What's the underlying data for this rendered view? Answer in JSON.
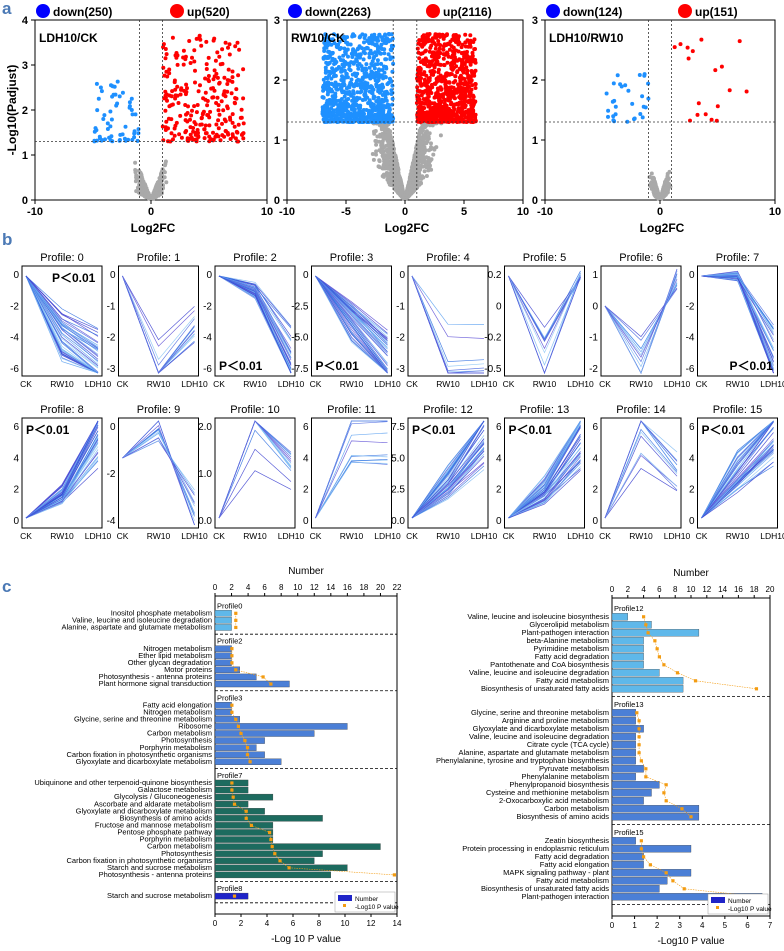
{
  "panel_labels": {
    "a": "a",
    "b": "b",
    "c": "c"
  },
  "colors": {
    "panel_label": "#4b79b5",
    "down": "#1e90ff",
    "up": "#ff0000",
    "ns": "#a9a9a9",
    "profile_line": "#4d79e8",
    "bar_light": "#5fb8ea",
    "bar_dark": "#1d6b5f",
    "bar_blue": "#4b7fd6",
    "bar_navy": "#1f24c8",
    "pvalue": "#f39c12"
  },
  "volcano": {
    "ylabel": "-Log10(Padjust)",
    "xlabel": "Log2FC",
    "panels": [
      {
        "title": "LDH10/CK",
        "down": "down(250)",
        "up": "up(520)",
        "xlim": [
          -10,
          10
        ],
        "ylim": [
          0,
          4
        ],
        "xticks": [
          "-10",
          "0",
          "10"
        ],
        "yticks": [
          "0",
          "1",
          "2",
          "3",
          "4"
        ]
      },
      {
        "title": "RW10/CK",
        "down": "down(2263)",
        "up": "up(2116)",
        "xlim": [
          -10,
          10
        ],
        "ylim": [
          0,
          3
        ],
        "xticks": [
          "-10",
          "-5",
          "0",
          "5",
          "10"
        ],
        "yticks": [
          "0",
          "1",
          "2",
          "3"
        ]
      },
      {
        "title": "LDH10/RW10",
        "down": "down(124)",
        "up": "up(151)",
        "xlim": [
          -10,
          10
        ],
        "ylim": [
          0,
          3
        ],
        "xticks": [
          "-10",
          "0",
          "10"
        ],
        "yticks": [
          "0",
          "1",
          "2",
          "3"
        ]
      }
    ]
  },
  "profiles": {
    "xticks": [
      "CK",
      "RW10",
      "LDH10"
    ],
    "items": [
      {
        "title": "Profile: 0",
        "p": "P＜0.01",
        "yticks": [
          "0",
          "-2",
          "-4",
          "-6"
        ],
        "pattern": [
          0,
          -4,
          -6
        ]
      },
      {
        "title": "Profile: 1",
        "p": "",
        "yticks": [
          "0",
          "-1",
          "-2",
          "-3"
        ],
        "pattern": [
          0,
          -2,
          -1
        ]
      },
      {
        "title": "Profile: 2",
        "p": "P＜0.01",
        "yticks": [
          "0",
          "-2",
          "-4",
          "-6"
        ],
        "pattern": [
          0,
          -1,
          -6
        ]
      },
      {
        "title": "Profile: 3",
        "p": "P＜0.01",
        "yticks": [
          "0",
          "-2.5",
          "-5.0",
          "-7.5"
        ],
        "pattern": [
          0,
          -2,
          -4
        ]
      },
      {
        "title": "Profile: 4",
        "p": "",
        "yticks": [
          "0",
          "-1",
          "-2",
          "-3"
        ],
        "pattern": [
          0,
          -2,
          -2
        ]
      },
      {
        "title": "Profile: 5",
        "p": "",
        "yticks": [
          "0.2",
          "0",
          "-0.2",
          "-0.5"
        ],
        "pattern": [
          0,
          -1,
          0
        ]
      },
      {
        "title": "Profile: 6",
        "p": "",
        "yticks": [
          "1",
          "0",
          "-1",
          "-2"
        ],
        "pattern": [
          0,
          -2,
          1
        ]
      },
      {
        "title": "Profile: 7",
        "p": "P＜0.01",
        "yticks": [
          "0",
          "-2",
          "-4",
          "-6"
        ],
        "pattern": [
          0,
          0,
          -4
        ]
      },
      {
        "title": "Profile: 8",
        "p": "P＜0.01",
        "yticks": [
          "6",
          "4",
          "2",
          "0"
        ],
        "pattern": [
          0,
          1,
          4
        ]
      },
      {
        "title": "Profile: 9",
        "p": "",
        "yticks": [
          "0",
          "-2",
          "-4"
        ],
        "pattern": [
          0,
          1,
          -2
        ]
      },
      {
        "title": "Profile: 10",
        "p": "",
        "yticks": [
          "2.0",
          "1.0",
          "0.0"
        ],
        "pattern": [
          0,
          2,
          1
        ]
      },
      {
        "title": "Profile: 11",
        "p": "",
        "yticks": [
          "6",
          "4",
          "2",
          "0"
        ],
        "pattern": [
          0,
          3,
          3
        ]
      },
      {
        "title": "Profile: 12",
        "p": "P＜0.01",
        "yticks": [
          "7.5",
          "5.0",
          "2.5",
          "0.0"
        ],
        "pattern": [
          0,
          2,
          5
        ]
      },
      {
        "title": "Profile: 13",
        "p": "P＜0.01",
        "yticks": [
          "6",
          "4",
          "2",
          "0"
        ],
        "pattern": [
          0,
          1,
          3
        ]
      },
      {
        "title": "Profile: 14",
        "p": "",
        "yticks": [
          "6",
          "4",
          "2",
          "0"
        ],
        "pattern": [
          0,
          4,
          2
        ]
      },
      {
        "title": "Profile: 15",
        "p": "P＜0.01",
        "yticks": [
          "6",
          "4",
          "2",
          "0"
        ],
        "pattern": [
          0,
          2,
          4
        ]
      }
    ]
  },
  "chart_data": [
    {
      "type": "bar",
      "title": "",
      "xlabel_top": "Number",
      "xlabel_bottom": "-Log 10 P value",
      "top_ticks": [
        "0",
        "2",
        "4",
        "6",
        "8",
        "10",
        "12",
        "14",
        "16",
        "18",
        "20",
        "22"
      ],
      "bottom_ticks": [
        "0",
        "2",
        "4",
        "6",
        "8",
        "10",
        "12",
        "14"
      ],
      "legend": {
        "number": "Number",
        "pvalue": "-Log10 P value"
      },
      "groups": [
        {
          "name": "Profile0",
          "color": "bar_light",
          "terms": [
            {
              "label": "Inositol phosphate metabolism",
              "number": 2,
              "p": 1.6
            },
            {
              "label": "Valine, leucine and isoleucine degradation",
              "number": 2,
              "p": 1.6
            },
            {
              "label": "Alanine, aspartate and glutamate metabolism",
              "number": 2,
              "p": 1.6
            }
          ]
        },
        {
          "name": "Profile2",
          "color": "bar_blue",
          "terms": [
            {
              "label": "Nitrogen metabolism",
              "number": 2,
              "p": 1.3
            },
            {
              "label": "Ether lipid metabolism",
              "number": 2,
              "p": 1.3
            },
            {
              "label": "Other glycan degradation",
              "number": 2,
              "p": 1.3
            },
            {
              "label": "Motor proteins",
              "number": 3,
              "p": 1.6
            },
            {
              "label": "Photosynthesis - antenna proteins",
              "number": 5,
              "p": 3.7
            },
            {
              "label": "Plant hormone signal transduction",
              "number": 9,
              "p": 4.3
            }
          ]
        },
        {
          "name": "Profile3",
          "color": "bar_blue",
          "terms": [
            {
              "label": "Fatty acid elongation",
              "number": 2,
              "p": 1.3
            },
            {
              "label": "Nitrogen metabolism",
              "number": 2,
              "p": 1.3
            },
            {
              "label": "Glycine, serine and threonine metabolism",
              "number": 3,
              "p": 1.6
            },
            {
              "label": "Ribosome",
              "number": 16,
              "p": 1.8
            },
            {
              "label": "Carbon metabolism",
              "number": 12,
              "p": 2.0
            },
            {
              "label": "Photosynthesis",
              "number": 6,
              "p": 2.3
            },
            {
              "label": "Porphyrin metabolism",
              "number": 5,
              "p": 2.5
            },
            {
              "label": "Carbon fixation in photosynthetic organisms",
              "number": 6,
              "p": 2.5
            },
            {
              "label": "Glyoxylate and dicarboxylate metabolism",
              "number": 8,
              "p": 2.7
            }
          ]
        },
        {
          "name": "Profile7",
          "color": "bar_dark",
          "terms": [
            {
              "label": "Ubiquinone and other terpenoid-quinone biosynthesis",
              "number": 4,
              "p": 1.3
            },
            {
              "label": "Galactose metabolism",
              "number": 4,
              "p": 1.3
            },
            {
              "label": "Glycolysis / Gluconeogenesis",
              "number": 7,
              "p": 1.4
            },
            {
              "label": "Ascorbate and aldarate metabolism",
              "number": 4,
              "p": 1.5
            },
            {
              "label": "Glyoxylate and dicarboxylate metabolism",
              "number": 6,
              "p": 2.4
            },
            {
              "label": "Biosynthesis of amino acids",
              "number": 13,
              "p": 2.4
            },
            {
              "label": "Fructose and mannose metabolism",
              "number": 7,
              "p": 2.8
            },
            {
              "label": "Pentose phosphate pathway",
              "number": 7,
              "p": 4.2
            },
            {
              "label": "Porphyrin metabolism",
              "number": 7,
              "p": 4.3
            },
            {
              "label": "Carbon metabolism",
              "number": 20,
              "p": 4.4
            },
            {
              "label": "Photosynthesis",
              "number": 13,
              "p": 4.6
            },
            {
              "label": "Carbon fixation in photosynthetic organisms",
              "number": 12,
              "p": 5.0
            },
            {
              "label": "Starch and sucrose metabolism",
              "number": 16,
              "p": 5.7
            },
            {
              "label": "Photosynthesis - antenna proteins",
              "number": 14,
              "p": 13.8
            }
          ]
        },
        {
          "name": "Profile8",
          "color": "bar_navy",
          "terms": [
            {
              "label": "Starch and sucrose metabolism",
              "number": 4,
              "p": 1.5
            }
          ]
        }
      ]
    },
    {
      "type": "bar",
      "title": "",
      "xlabel_top": "Number",
      "xlabel_bottom": "-Log10 P value",
      "top_ticks": [
        "0",
        "2",
        "4",
        "6",
        "8",
        "10",
        "12",
        "14",
        "16",
        "18",
        "20"
      ],
      "bottom_ticks": [
        "0",
        "1",
        "2",
        "3",
        "4",
        "5",
        "6",
        "7"
      ],
      "legend": {
        "number": "Number",
        "pvalue": "-Log10 P value"
      },
      "groups": [
        {
          "name": "Profile12",
          "color": "bar_light",
          "terms": [
            {
              "label": "Valine, leucine and isoleucine biosynthesis",
              "number": 2,
              "p": 1.4
            },
            {
              "label": "Glycerolipid metabolism",
              "number": 5,
              "p": 1.5
            },
            {
              "label": "Plant-pathogen interaction",
              "number": 11,
              "p": 1.6
            },
            {
              "label": "beta-Alanine metabolism",
              "number": 4,
              "p": 1.9
            },
            {
              "label": "Pyrimidine metabolism",
              "number": 4,
              "p": 2.0
            },
            {
              "label": "Fatty acid degradation",
              "number": 4,
              "p": 2.1
            },
            {
              "label": "Pantothenate and CoA biosynthesis",
              "number": 4,
              "p": 2.3
            },
            {
              "label": "Valine, leucine and isoleucine degradation",
              "number": 6,
              "p": 2.9
            },
            {
              "label": "Fatty acid metabolism",
              "number": 9,
              "p": 3.7
            },
            {
              "label": "Biosynthesis of unsaturated fatty acids",
              "number": 9,
              "p": 6.4
            }
          ]
        },
        {
          "name": "Profile13",
          "color": "bar_blue",
          "terms": [
            {
              "label": "Glycine, serine and threonine metabolism",
              "number": 3,
              "p": 1.1
            },
            {
              "label": "Arginine and proline metabolism",
              "number": 3,
              "p": 1.2
            },
            {
              "label": "Glyoxylate and dicarboxylate metabolism",
              "number": 4,
              "p": 1.2
            },
            {
              "label": "Valine, leucine and isoleucine degradation",
              "number": 3,
              "p": 1.2
            },
            {
              "label": "Citrate cycle (TCA cycle)",
              "number": 3,
              "p": 1.2
            },
            {
              "label": "Alanine, aspartate and glutamate metabolism",
              "number": 3,
              "p": 1.2
            },
            {
              "label": "Phenylalanine, tyrosine and tryptophan biosynthesis",
              "number": 3,
              "p": 1.3
            },
            {
              "label": "Pyruvate metabolism",
              "number": 4,
              "p": 1.5
            },
            {
              "label": "Phenylalanine metabolism",
              "number": 3,
              "p": 1.5
            },
            {
              "label": "Phenylpropanoid biosynthesis",
              "number": 6,
              "p": 2.4
            },
            {
              "label": "Cysteine and methionine metabolism",
              "number": 5,
              "p": 2.3
            },
            {
              "label": "2-Oxocarboxylic acid metabolism",
              "number": 4,
              "p": 2.4
            },
            {
              "label": "Carbon metabolism",
              "number": 11,
              "p": 3.1
            },
            {
              "label": "Biosynthesis of amino acids",
              "number": 11,
              "p": 3.5
            }
          ]
        },
        {
          "name": "Profile15",
          "color": "bar_blue",
          "terms": [
            {
              "label": "Zeatin biosynthesis",
              "number": 3,
              "p": 1.3
            },
            {
              "label": "Protein processing in endoplasmic reticulum",
              "number": 10,
              "p": 1.3
            },
            {
              "label": "Fatty acid degradation",
              "number": 4,
              "p": 1.4
            },
            {
              "label": "Fatty acid elongation",
              "number": 4,
              "p": 1.7
            },
            {
              "label": "MAPK signaling pathway - plant",
              "number": 10,
              "p": 2.4
            },
            {
              "label": "Fatty acid metabolism",
              "number": 7,
              "p": 2.7
            },
            {
              "label": "Biosynthesis of unsaturated fatty acids",
              "number": 6,
              "p": 3.2
            },
            {
              "label": "Plant-pathogen interaction",
              "number": 19,
              "p": 6.6
            }
          ]
        }
      ]
    }
  ]
}
